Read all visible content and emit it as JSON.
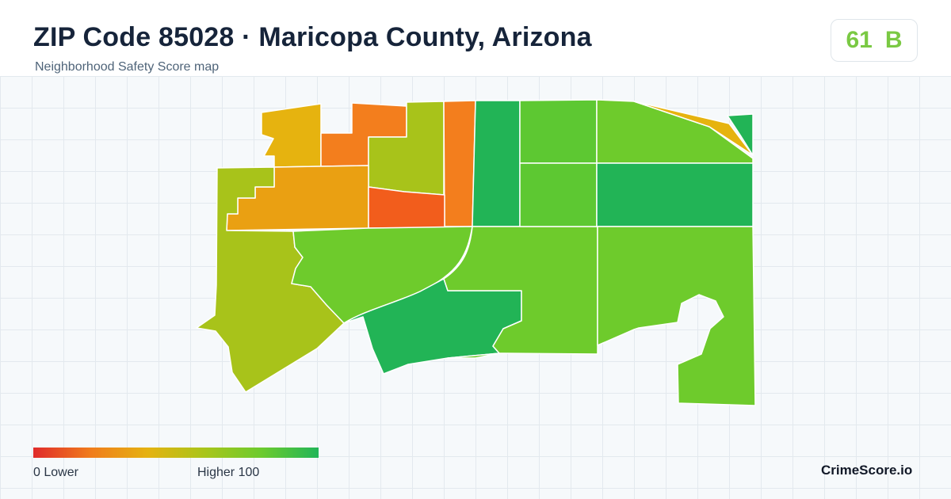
{
  "header": {
    "title": "ZIP Code 85028 · Maricopa County, Arizona",
    "subtitle": "Neighborhood Safety Score map"
  },
  "score": {
    "value": "61",
    "grade": "B",
    "color": "#7ac943"
  },
  "legend": {
    "low_label": "0  Lower",
    "high_label": "Higher  100",
    "gradient_colors": [
      "#e02b2b",
      "#f07c1c",
      "#e5b211",
      "#a9c51a",
      "#6ccb2e",
      "#22b558"
    ]
  },
  "brand": "CrimeScore.io",
  "map": {
    "colors": {
      "red_orange": "#f25d1c",
      "orange": "#f37e1d",
      "amber": "#eaa012",
      "gold": "#e6b30f",
      "olive": "#a8c31a",
      "light_green": "#6ecb2c",
      "mid_green": "#5dc832",
      "green": "#22b456"
    }
  }
}
